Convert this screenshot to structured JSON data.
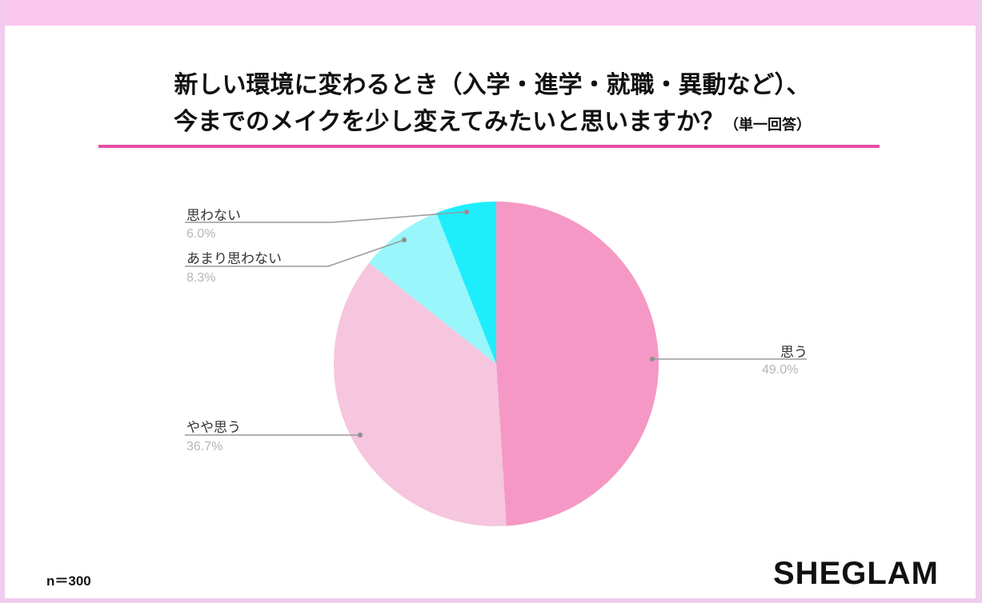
{
  "header": {
    "title_line1": "新しい環境に変わるとき（入学・進学・就職・異動など）、",
    "title_line2": "今までのメイクを少し変えてみたいと思いますか？",
    "title_suffix": "（単一回答）"
  },
  "footer": {
    "sample_size": "n＝300",
    "brand_logo": "SHEGLAM"
  },
  "colors": {
    "top_band": "#fbc6ef",
    "title_rule": "#e64ea6",
    "slice_omou": "#f598c5",
    "slice_yaya_omou": "#f5c6de",
    "slice_amari_omowanai": "#99f6fb",
    "slice_omowanai": "#1eeefc"
  },
  "slices": [
    {
      "label": "思う",
      "pct": "49.0%"
    },
    {
      "label": "やや思う",
      "pct": "36.7%"
    },
    {
      "label": "あまり思わない",
      "pct": "8.3%"
    },
    {
      "label": "思わない",
      "pct": "6.0%"
    }
  ],
  "chart_data": {
    "type": "pie",
    "title": "新しい環境に変わるとき（入学・進学・就職・異動など）、今までのメイクを少し変えてみたいと思いますか？（単一回答）",
    "categories": [
      "思う",
      "やや思う",
      "あまり思わない",
      "思わない"
    ],
    "values": [
      49.0,
      36.7,
      8.3,
      6.0
    ],
    "unit": "%",
    "colors": [
      "#f598c5",
      "#f5c6de",
      "#99f6fb",
      "#1eeefc"
    ],
    "start_angle": "12 o'clock, clockwise",
    "n": 300,
    "legend": "callout labels"
  }
}
